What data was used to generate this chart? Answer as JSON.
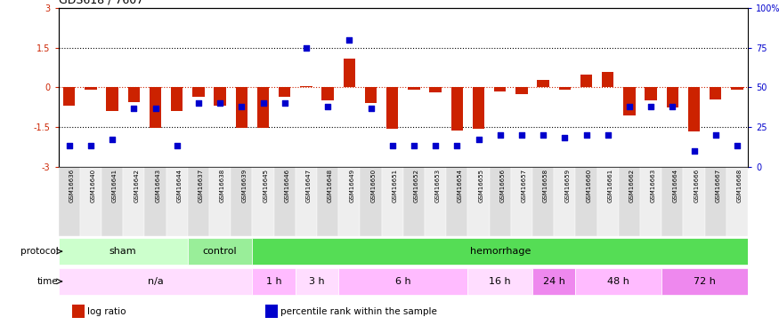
{
  "title": "GDS618 / 7607",
  "samples": [
    "GSM16636",
    "GSM16640",
    "GSM16641",
    "GSM16642",
    "GSM16643",
    "GSM16644",
    "GSM16637",
    "GSM16638",
    "GSM16639",
    "GSM16645",
    "GSM16646",
    "GSM16647",
    "GSM16648",
    "GSM16649",
    "GSM16650",
    "GSM16651",
    "GSM16652",
    "GSM16653",
    "GSM16654",
    "GSM16655",
    "GSM16656",
    "GSM16657",
    "GSM16658",
    "GSM16659",
    "GSM16660",
    "GSM16661",
    "GSM16662",
    "GSM16663",
    "GSM16664",
    "GSM16666",
    "GSM16667",
    "GSM16668"
  ],
  "log_ratio": [
    -0.7,
    -0.08,
    -0.9,
    -0.55,
    -1.55,
    -0.9,
    -0.35,
    -0.7,
    -1.55,
    -1.55,
    -0.35,
    0.05,
    -0.5,
    1.1,
    -0.6,
    -1.58,
    -0.08,
    -0.2,
    -1.62,
    -1.58,
    -0.15,
    -0.25,
    0.3,
    -0.08,
    0.5,
    0.6,
    -1.05,
    -0.5,
    -0.75,
    -1.68,
    -0.45,
    -0.08
  ],
  "pct_rank": [
    13,
    13,
    17,
    37,
    37,
    13,
    40,
    40,
    38,
    40,
    40,
    75,
    38,
    80,
    37,
    13,
    13,
    13,
    13,
    17,
    20,
    20,
    20,
    18,
    20,
    20,
    38,
    38,
    38,
    10,
    20,
    13
  ],
  "ylim_left": [
    -3,
    3
  ],
  "ylim_right": [
    0,
    100
  ],
  "yticks_left": [
    -3,
    -1.5,
    0,
    1.5,
    3
  ],
  "yticks_right": [
    0,
    25,
    50,
    75,
    100
  ],
  "ytick_labels_left": [
    "-3",
    "-1.5",
    "0",
    "1.5",
    "3"
  ],
  "ytick_labels_right": [
    "0",
    "25",
    "50",
    "75",
    "100%"
  ],
  "bar_color": "#cc2200",
  "dot_color": "#0000cc",
  "hline_color_zero": "#cc2200",
  "hline_color_15": "#000000",
  "protocol_groups": [
    {
      "label": "sham",
      "start": 0,
      "end": 6,
      "color": "#ccffcc"
    },
    {
      "label": "control",
      "start": 6,
      "end": 9,
      "color": "#99ee99"
    },
    {
      "label": "hemorrhage",
      "start": 9,
      "end": 32,
      "color": "#55dd55"
    }
  ],
  "time_groups": [
    {
      "label": "n/a",
      "start": 0,
      "end": 9,
      "color": "#ffddff"
    },
    {
      "label": "1 h",
      "start": 9,
      "end": 11,
      "color": "#ffbbff"
    },
    {
      "label": "3 h",
      "start": 11,
      "end": 13,
      "color": "#ffddff"
    },
    {
      "label": "6 h",
      "start": 13,
      "end": 19,
      "color": "#ffbbff"
    },
    {
      "label": "16 h",
      "start": 19,
      "end": 22,
      "color": "#ffddff"
    },
    {
      "label": "24 h",
      "start": 22,
      "end": 24,
      "color": "#ee88ee"
    },
    {
      "label": "48 h",
      "start": 24,
      "end": 28,
      "color": "#ffbbff"
    },
    {
      "label": "72 h",
      "start": 28,
      "end": 32,
      "color": "#ee88ee"
    }
  ],
  "legend_items": [
    {
      "label": "log ratio",
      "color": "#cc2200"
    },
    {
      "label": "percentile rank within the sample",
      "color": "#0000cc"
    }
  ],
  "tick_bg_even": "#dddddd",
  "tick_bg_odd": "#eeeeee"
}
